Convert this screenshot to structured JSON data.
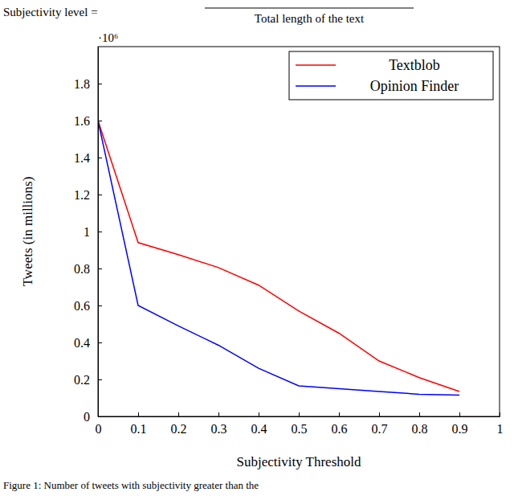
{
  "chart_data": {
    "type": "line",
    "x_label": "Subjectivity Threshold",
    "y_label": "Tweets (in millions)",
    "annotations": [
      "Subjectivity level =",
      "Total length of the text",
      "·10⁶",
      "Figure 1: Number of tweets with subjectivity greater than the"
    ],
    "x": [
      0,
      0.1,
      0.2,
      0.3,
      0.4,
      0.5,
      0.6,
      0.7,
      0.8,
      0.9
    ],
    "series": [
      {
        "name": "Textblob",
        "color": "#ff0000",
        "values": [
          1.6,
          0.94,
          0.875,
          0.805,
          0.71,
          0.57,
          0.45,
          0.3,
          0.21,
          0.135
        ]
      },
      {
        "name": "Opinion Finder",
        "color": "#0000ff",
        "values": [
          1.6,
          0.6,
          0.49,
          0.385,
          0.26,
          0.165,
          0.15,
          0.135,
          0.12,
          0.115
        ]
      }
    ],
    "xlim": [
      0,
      1
    ],
    "xticks": [
      0,
      0.1,
      0.2,
      0.3,
      0.4,
      0.5,
      0.6,
      0.7,
      0.8,
      0.9,
      1
    ],
    "ylim": [
      0,
      2
    ],
    "yticks": [
      0,
      0.2,
      0.4,
      0.6,
      0.8,
      1,
      1.2,
      1.4,
      1.6,
      1.8
    ],
    "legend": "upper right",
    "grid": false
  }
}
